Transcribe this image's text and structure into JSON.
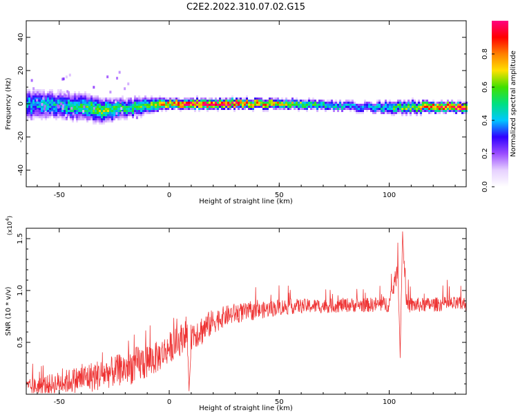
{
  "figure": {
    "title": "C2E2.2022.310.07.02.G15"
  },
  "chart_data": [
    {
      "type": "heatmap",
      "name": "spectrogram",
      "xlabel": "Height of straight line (km)",
      "ylabel": "Frequency (Hz)",
      "xlim": [
        -65,
        135
      ],
      "ylim": [
        -50,
        50
      ],
      "xticks": [
        -50,
        0,
        50,
        100
      ],
      "yticks": [
        -40,
        -20,
        0,
        20,
        40
      ],
      "grid": false,
      "colorbar": {
        "label": "Normalized spectral amplitude",
        "range": [
          0,
          1
        ],
        "ticks": [
          "0.0",
          "0.2",
          "0.4",
          "0.6",
          "0.8"
        ],
        "colors": [
          "#ffffff",
          "#e6d0ff",
          "#9b4dff",
          "#3000ff",
          "#00c8ff",
          "#00e080",
          "#40e000",
          "#ffe000",
          "#ff8000",
          "#ff0000",
          "#ff0080"
        ]
      },
      "profile": {
        "description_x": [
          -65,
          -50,
          -40,
          -30,
          -20,
          -10,
          0,
          10,
          30,
          50,
          70,
          90,
          100,
          110,
          120,
          135
        ],
        "center_freq": [
          -1,
          -1,
          -2,
          -4,
          -3,
          -1,
          0,
          0,
          0,
          0,
          -1,
          -2,
          -2,
          -2,
          -2,
          -2
        ],
        "peak_amplitude": [
          0.4,
          0.45,
          0.5,
          0.6,
          0.5,
          0.55,
          0.8,
          0.95,
          0.9,
          0.7,
          0.5,
          0.4,
          0.5,
          0.6,
          0.9,
          0.9
        ],
        "spread_hz": [
          9,
          8,
          8,
          7,
          6,
          5,
          3,
          3,
          3,
          3,
          3,
          3,
          4,
          4,
          3,
          3
        ]
      }
    },
    {
      "type": "line",
      "name": "snr",
      "xlabel": "Height of straight line (km)",
      "ylabel": "SNR (10 * v/v)",
      "yscale_label": "(x10^4)",
      "xlim": [
        -65,
        135
      ],
      "ylim": [
        0,
        1.6
      ],
      "xticks": [
        -50,
        0,
        50,
        100
      ],
      "yticks": [
        "0.5",
        "1.0",
        "1.5"
      ],
      "grid": false,
      "series": [
        {
          "color": "#ee3333",
          "x": [
            -65,
            -55,
            -45,
            -35,
            -25,
            -15,
            -10,
            -5,
            0,
            5,
            8,
            9,
            10,
            15,
            20,
            25,
            30,
            40,
            50,
            60,
            70,
            80,
            90,
            100,
            104,
            105,
            106,
            108,
            115,
            125,
            135
          ],
          "y": [
            0.06,
            0.09,
            0.13,
            0.17,
            0.22,
            0.28,
            0.32,
            0.36,
            0.45,
            0.52,
            0.62,
            0.03,
            0.58,
            0.62,
            0.7,
            0.75,
            0.78,
            0.8,
            0.84,
            0.85,
            0.85,
            0.86,
            0.86,
            0.87,
            1.2,
            0.35,
            1.55,
            0.86,
            0.86,
            0.87,
            0.87
          ],
          "noise_amplitude": [
            0.08,
            0.1,
            0.12,
            0.15,
            0.15,
            0.18,
            0.18,
            0.15,
            0.15,
            0.15,
            0.15,
            0.0,
            0.15,
            0.15,
            0.12,
            0.1,
            0.1,
            0.08,
            0.08,
            0.07,
            0.07,
            0.07,
            0.07,
            0.08,
            0.1,
            0.0,
            0.1,
            0.08,
            0.07,
            0.07,
            0.07
          ]
        }
      ]
    }
  ]
}
